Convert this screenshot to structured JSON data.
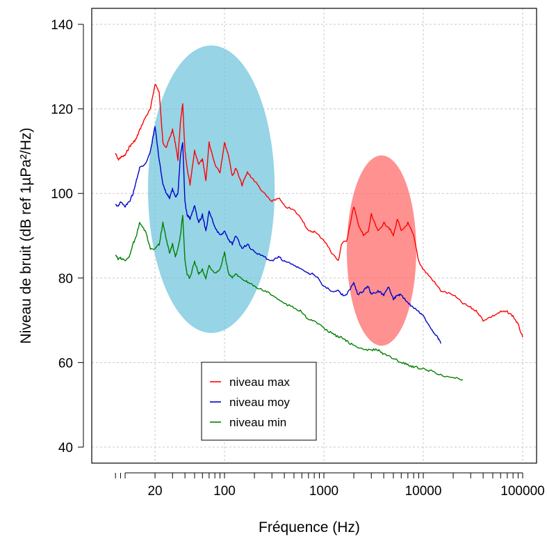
{
  "chart_data": {
    "type": "line",
    "title": "",
    "xlabel": "Fréquence (Hz)",
    "ylabel": "Niveau de bruit (dB ref 1µPa²/Hz)",
    "x_scale": "log",
    "xlim": [
      10,
      100000
    ],
    "ylim": [
      40,
      140
    ],
    "grid": true,
    "x_tick_labels": [
      {
        "value": 20,
        "label": "20"
      },
      {
        "value": 100,
        "label": "100"
      },
      {
        "value": 1000,
        "label": "1000"
      },
      {
        "value": 10000,
        "label": "10000"
      },
      {
        "value": 100000,
        "label": "100000"
      }
    ],
    "y_ticks": [
      40,
      60,
      80,
      100,
      120,
      140
    ],
    "legend": {
      "position": "bottom-center",
      "entries": [
        {
          "label": "niveau max",
          "color": "#ff0000"
        },
        {
          "label": "niveau moy",
          "color": "#0000cc"
        },
        {
          "label": "niveau min",
          "color": "#008000"
        }
      ]
    },
    "series": [
      {
        "name": "niveau max",
        "color": "#ff0000",
        "x": [
          8,
          8.5,
          9,
          10,
          11,
          12,
          13,
          14,
          16,
          18,
          20,
          22,
          24,
          26,
          28,
          30,
          32,
          34,
          36,
          38,
          40,
          42,
          45,
          50,
          55,
          60,
          65,
          70,
          80,
          90,
          100,
          110,
          120,
          130,
          150,
          170,
          200,
          250,
          300,
          350,
          400,
          500,
          600,
          700,
          800,
          1000,
          1200,
          1400,
          1500,
          1700,
          2000,
          2200,
          2500,
          2800,
          3000,
          3500,
          4000,
          4500,
          5000,
          5500,
          6000,
          7000,
          8000,
          9000,
          10000,
          12000,
          15000,
          20000,
          25000,
          30000,
          35000,
          40000,
          50000,
          60000,
          70000,
          80000,
          90000,
          100000
        ],
        "y": [
          109.5,
          108,
          108.5,
          109,
          111,
          112,
          113,
          115,
          118,
          120,
          126,
          124,
          112,
          111,
          113,
          115,
          112,
          108,
          117,
          121,
          110,
          106,
          102,
          110,
          107,
          108,
          103,
          112,
          107,
          105,
          112,
          109,
          104,
          106,
          102,
          105,
          103,
          100,
          98,
          99,
          97,
          96,
          94,
          91,
          91,
          89,
          86,
          84,
          88,
          89,
          97,
          93,
          90,
          91,
          95,
          91,
          93,
          92,
          90,
          94,
          91,
          93,
          90,
          84,
          82,
          80,
          77,
          76,
          74,
          73,
          72,
          70,
          71,
          72,
          72,
          71,
          69,
          66
        ]
      },
      {
        "name": "niveau moy",
        "color": "#0000cc",
        "x": [
          8,
          8.5,
          9,
          10,
          11,
          12,
          13,
          14,
          16,
          18,
          20,
          22,
          24,
          26,
          28,
          30,
          32,
          34,
          36,
          38,
          40,
          42,
          45,
          50,
          55,
          60,
          65,
          70,
          80,
          90,
          100,
          110,
          120,
          130,
          150,
          170,
          200,
          250,
          300,
          350,
          400,
          500,
          600,
          700,
          800,
          1000,
          1200,
          1400,
          1500,
          1700,
          2000,
          2200,
          2500,
          2800,
          3000,
          3500,
          4000,
          4500,
          5000,
          5500,
          6000,
          7000,
          8000,
          9000,
          10000,
          12000,
          14000,
          15000
        ],
        "y": [
          97.5,
          97,
          98,
          97,
          98,
          100,
          103,
          106,
          107,
          110,
          116,
          108,
          102,
          100,
          99,
          101,
          99,
          100,
          109,
          112,
          98,
          95,
          94,
          97,
          93,
          95,
          91,
          96,
          92,
          90,
          91,
          89,
          88,
          90,
          87,
          88,
          86,
          85,
          84,
          85,
          84,
          83,
          82,
          81,
          81,
          78,
          77,
          77,
          76,
          76,
          79,
          76,
          77,
          78,
          76,
          77,
          76,
          78,
          75,
          76,
          76,
          74,
          73,
          72,
          71,
          68,
          66,
          64.5
        ]
      },
      {
        "name": "niveau min",
        "color": "#008000",
        "x": [
          8,
          8.5,
          9,
          10,
          11,
          12,
          13,
          14,
          16,
          18,
          20,
          22,
          24,
          26,
          28,
          30,
          32,
          34,
          36,
          38,
          40,
          42,
          45,
          50,
          55,
          60,
          65,
          70,
          80,
          90,
          100,
          110,
          120,
          130,
          150,
          170,
          200,
          250,
          300,
          350,
          400,
          500,
          600,
          700,
          800,
          1000,
          1200,
          1400,
          1500,
          1700,
          2000,
          2500,
          3000,
          3500,
          4000,
          5000,
          6000,
          7000,
          8000,
          10000,
          12000,
          15000,
          20000,
          25000
        ],
        "y": [
          85.5,
          84.5,
          84.8,
          84,
          85,
          88,
          90,
          93,
          91,
          87,
          87,
          88,
          93,
          89,
          86,
          88,
          85,
          87,
          90,
          95,
          84,
          81,
          80,
          84,
          81,
          82,
          80,
          83,
          81,
          82,
          86,
          81,
          80,
          81,
          80,
          79,
          78,
          77,
          76,
          75,
          74,
          73,
          72,
          70,
          70,
          68,
          67,
          66,
          66,
          65,
          64,
          63,
          63,
          63,
          62,
          61,
          60,
          59.5,
          59,
          58.5,
          58,
          57,
          56.5,
          56
        ]
      }
    ],
    "highlight_ellipses": [
      {
        "color": "#6dc3dd",
        "opacity": 0.72,
        "cx": 100,
        "cy": 101,
        "x_from": 17,
        "x_to": 320,
        "y_from": 67,
        "y_to": 135
      },
      {
        "color": "#ff6666",
        "opacity": 0.72,
        "cx": 3700,
        "cy": 86,
        "x_from": 1700,
        "x_to": 8500,
        "y_from": 64,
        "y_to": 109
      }
    ]
  }
}
